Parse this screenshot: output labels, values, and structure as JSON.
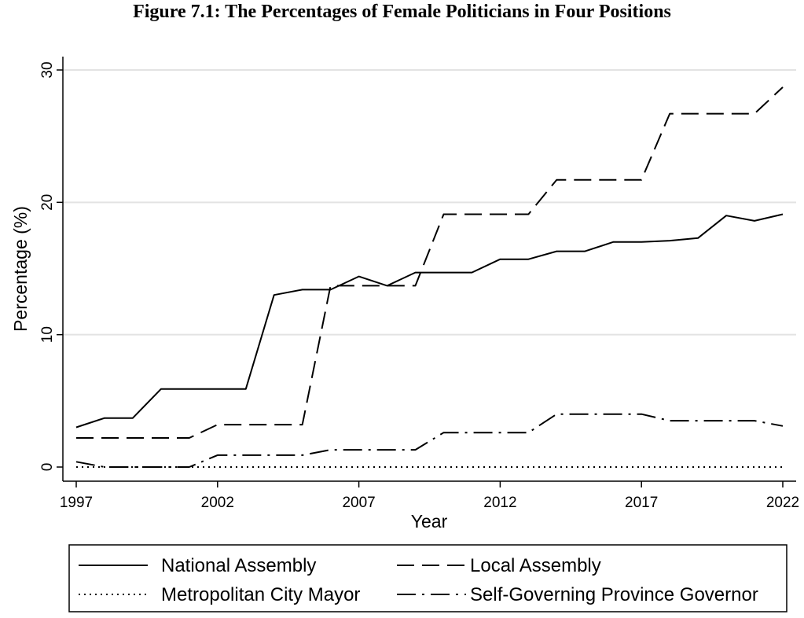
{
  "chart_data": {
    "type": "line",
    "title": "Figure 7.1: The Percentages of Female Politicians in Four Positions",
    "xlabel": "Year",
    "ylabel": "Percentage (%)",
    "xlim": [
      1997,
      2022
    ],
    "ylim": [
      0,
      30
    ],
    "xticks": [
      1997,
      2002,
      2007,
      2012,
      2017,
      2022
    ],
    "yticks": [
      0,
      10,
      20,
      30
    ],
    "grid": "horizontal",
    "legend_position": "bottom",
    "series": [
      {
        "name": "National Assembly",
        "style": "solid",
        "points": [
          [
            1997,
            3.0
          ],
          [
            1998,
            3.7
          ],
          [
            1999,
            3.7
          ],
          [
            2000,
            5.9
          ],
          [
            2001,
            5.9
          ],
          [
            2002,
            5.9
          ],
          [
            2003,
            5.9
          ],
          [
            2004,
            13.0
          ],
          [
            2005,
            13.4
          ],
          [
            2006,
            13.4
          ],
          [
            2007,
            14.4
          ],
          [
            2008,
            13.7
          ],
          [
            2009,
            14.7
          ],
          [
            2010,
            14.7
          ],
          [
            2011,
            14.7
          ],
          [
            2012,
            15.7
          ],
          [
            2013,
            15.7
          ],
          [
            2014,
            16.3
          ],
          [
            2015,
            16.3
          ],
          [
            2016,
            17.0
          ],
          [
            2017,
            17.0
          ],
          [
            2018,
            17.1
          ],
          [
            2019,
            17.3
          ],
          [
            2020,
            19.0
          ],
          [
            2021,
            18.6
          ],
          [
            2022,
            19.1
          ]
        ]
      },
      {
        "name": "Local Assembly",
        "style": "dash",
        "points": [
          [
            1997,
            2.2
          ],
          [
            2001,
            2.2
          ],
          [
            2002,
            3.2
          ],
          [
            2005,
            3.2
          ],
          [
            2006,
            13.7
          ],
          [
            2009,
            13.7
          ],
          [
            2010,
            19.1
          ],
          [
            2013,
            19.1
          ],
          [
            2014,
            21.7
          ],
          [
            2017,
            21.7
          ],
          [
            2018,
            26.7
          ],
          [
            2021,
            26.7
          ],
          [
            2022,
            28.7
          ]
        ]
      },
      {
        "name": "Metropolitan City Mayor",
        "style": "dot",
        "points": [
          [
            1997,
            0
          ],
          [
            2022,
            0
          ]
        ]
      },
      {
        "name": "Self-Governing Province Governor",
        "style": "dashdot",
        "points": [
          [
            1997,
            0.4
          ],
          [
            1998,
            0
          ],
          [
            2001,
            0
          ],
          [
            2002,
            0.9
          ],
          [
            2005,
            0.9
          ],
          [
            2006,
            1.3
          ],
          [
            2009,
            1.3
          ],
          [
            2010,
            2.6
          ],
          [
            2013,
            2.6
          ],
          [
            2014,
            4.0
          ],
          [
            2017,
            4.0
          ],
          [
            2018,
            3.5
          ],
          [
            2021,
            3.5
          ],
          [
            2022,
            3.1
          ]
        ]
      }
    ]
  }
}
